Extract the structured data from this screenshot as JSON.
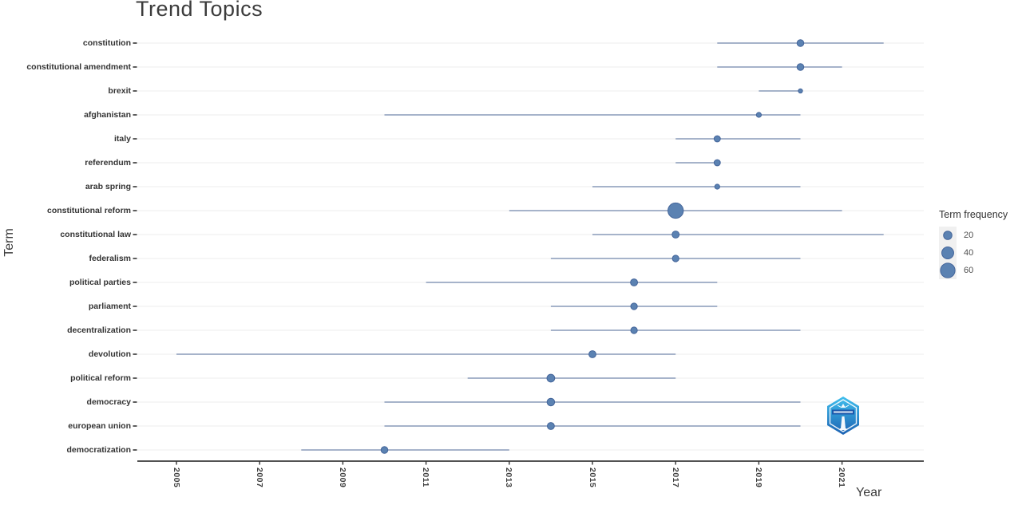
{
  "title": "Trend Topics",
  "axes": {
    "x_label": "Year",
    "y_label": "Term"
  },
  "legend": {
    "title": "Term frequency",
    "entries": [
      20,
      40,
      60
    ]
  },
  "colors": {
    "dot_fill": "#5b82b2",
    "dot_stroke": "#44659a",
    "segment": "#a6b3ca",
    "grid_line": "#ececec",
    "axis_line": "#1a1a1a",
    "tick_mark": "#333333",
    "title_text": "#3c3c3c",
    "legend_key_bg": "#f0f0f0",
    "logo_top": "#41c0ee",
    "logo_bottom": "#1b61b2",
    "logo_band": "#1953a8"
  },
  "chart_data": {
    "type": "scatter",
    "title": "Trend Topics",
    "xlabel": "Year",
    "ylabel": "Term",
    "legend_title": "Term frequency",
    "legend_sizes": [
      20,
      40,
      60
    ],
    "x_ticks": [
      2005,
      2007,
      2009,
      2011,
      2013,
      2015,
      2017,
      2019,
      2021
    ],
    "xlim": [
      2004,
      2023
    ],
    "grid": "horizontal-row-lines",
    "legend_position": "right",
    "series_note": "each term: interquartile year range (year_q1..year_q3), dot at median year, dot size = term frequency",
    "series": [
      {
        "term": "constitution",
        "year_q1": 2018,
        "year_median": 2020,
        "year_q3": 2022,
        "freq": 13
      },
      {
        "term": "constitutional amendment",
        "year_q1": 2018,
        "year_median": 2020,
        "year_q3": 2021,
        "freq": 13
      },
      {
        "term": "brexit",
        "year_q1": 2019,
        "year_median": 2020,
        "year_q3": 2020,
        "freq": 5
      },
      {
        "term": "afghanistan",
        "year_q1": 2010,
        "year_median": 2019,
        "year_q3": 2020,
        "freq": 7
      },
      {
        "term": "italy",
        "year_q1": 2017,
        "year_median": 2018,
        "year_q3": 2020,
        "freq": 11
      },
      {
        "term": "referendum",
        "year_q1": 2017,
        "year_median": 2018,
        "year_q3": 2018,
        "freq": 11
      },
      {
        "term": "arab spring",
        "year_q1": 2015,
        "year_median": 2018,
        "year_q3": 2020,
        "freq": 7
      },
      {
        "term": "constitutional reform",
        "year_q1": 2013,
        "year_median": 2017,
        "year_q3": 2021,
        "freq": 67
      },
      {
        "term": "constitutional law",
        "year_q1": 2015,
        "year_median": 2017,
        "year_q3": 2022,
        "freq": 14
      },
      {
        "term": "federalism",
        "year_q1": 2014,
        "year_median": 2017,
        "year_q3": 2020,
        "freq": 12
      },
      {
        "term": "political parties",
        "year_q1": 2011,
        "year_median": 2016,
        "year_q3": 2018,
        "freq": 14
      },
      {
        "term": "parliament",
        "year_q1": 2014,
        "year_median": 2016,
        "year_q3": 2018,
        "freq": 12
      },
      {
        "term": "decentralization",
        "year_q1": 2014,
        "year_median": 2016,
        "year_q3": 2020,
        "freq": 12
      },
      {
        "term": "devolution",
        "year_q1": 2005,
        "year_median": 2015,
        "year_q3": 2017,
        "freq": 14
      },
      {
        "term": "political reform",
        "year_q1": 2012,
        "year_median": 2014,
        "year_q3": 2017,
        "freq": 17
      },
      {
        "term": "democracy",
        "year_q1": 2010,
        "year_median": 2014,
        "year_q3": 2020,
        "freq": 16
      },
      {
        "term": "european union",
        "year_q1": 2010,
        "year_median": 2014,
        "year_q3": 2020,
        "freq": 14
      },
      {
        "term": "democratization",
        "year_q1": 2008,
        "year_median": 2010,
        "year_q3": 2013,
        "freq": 13
      }
    ]
  },
  "watermark": {
    "icon": "hexagon-lighthouse-logo"
  }
}
